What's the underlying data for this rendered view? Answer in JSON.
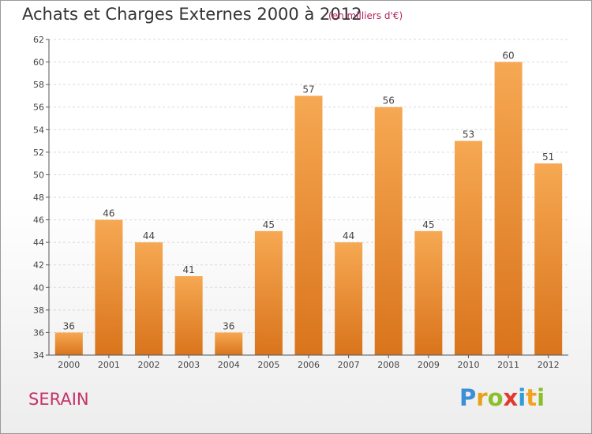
{
  "header": {
    "title": "Achats et Charges Externes 2000 à 2012",
    "subtitle": "(en milliers d'€)"
  },
  "footer": {
    "location": "SERAIN",
    "brand_letters": [
      "P",
      "r",
      "o",
      "x",
      "i",
      "t",
      "i"
    ],
    "brand_colors": [
      "#3a8fd6",
      "#e8a21a",
      "#8dbf2a",
      "#e23a2c",
      "#2f9bd8",
      "#f2a21e",
      "#8bbf2a"
    ]
  },
  "colors": {
    "bar_top": "#f6a852",
    "bar_bottom": "#d9741c",
    "grid": "#d9d9d9",
    "axis": "#555555"
  },
  "chart_data": {
    "type": "bar",
    "categories": [
      "2000",
      "2001",
      "2002",
      "2003",
      "2004",
      "2005",
      "2006",
      "2007",
      "2008",
      "2009",
      "2010",
      "2011",
      "2012"
    ],
    "values": [
      36,
      46,
      44,
      41,
      36,
      45,
      57,
      44,
      56,
      45,
      53,
      60,
      51
    ],
    "yticks": [
      34,
      36,
      38,
      40,
      42,
      44,
      46,
      48,
      50,
      52,
      54,
      56,
      58,
      60,
      62
    ],
    "ylim": [
      34,
      62
    ],
    "title": "Achats et Charges Externes 2000 à 2012",
    "grid": true
  }
}
